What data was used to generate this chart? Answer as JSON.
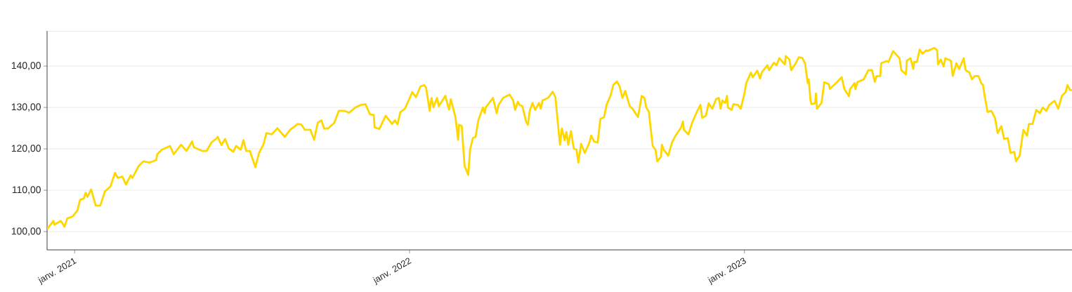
{
  "chart_data": {
    "type": "line",
    "color": "#ffd700",
    "grid": "y",
    "xlim": [
      "2020-12-02",
      "2023-12-24"
    ],
    "xticks": [
      {
        "value": "2021-01-01",
        "label": "janv. 2021"
      },
      {
        "value": "2022-01-01",
        "label": "janv. 2022"
      },
      {
        "value": "2023-01-01",
        "label": "janv. 2023"
      }
    ],
    "ylim": [
      95.6,
      148.5
    ],
    "yticks": [
      {
        "value": 100,
        "label": "100,00"
      },
      {
        "value": 110,
        "label": "110,00"
      },
      {
        "value": 120,
        "label": "120,00"
      },
      {
        "value": 130,
        "label": "130,00"
      },
      {
        "value": 140,
        "label": "140,00"
      }
    ],
    "x": [
      "2020-12-02",
      "2020-12-09",
      "2020-12-10",
      "2020-12-17",
      "2020-12-21",
      "2020-12-24",
      "2020-12-30",
      "2021-01-04",
      "2021-01-07",
      "2021-01-11",
      "2021-01-13",
      "2021-01-15",
      "2021-01-19",
      "2021-01-24",
      "2021-01-29",
      "2021-02-03",
      "2021-02-09",
      "2021-02-14",
      "2021-02-17",
      "2021-02-22",
      "2021-02-26",
      "2021-03-03",
      "2021-03-05",
      "2021-03-12",
      "2021-03-17",
      "2021-03-24",
      "2021-03-31",
      "2021-04-01",
      "2021-04-06",
      "2021-04-15",
      "2021-04-19",
      "2021-04-27",
      "2021-05-03",
      "2021-05-09",
      "2021-05-11",
      "2021-05-20",
      "2021-05-25",
      "2021-05-30",
      "2021-06-05",
      "2021-06-06",
      "2021-06-10",
      "2021-06-14",
      "2021-06-18",
      "2021-06-23",
      "2021-06-26",
      "2021-07-01",
      "2021-07-04",
      "2021-07-07",
      "2021-07-11",
      "2021-07-17",
      "2021-07-21",
      "2021-07-26",
      "2021-07-29",
      "2021-08-04",
      "2021-08-10",
      "2021-08-18",
      "2021-08-24",
      "2021-09-01",
      "2021-09-05",
      "2021-09-09",
      "2021-09-15",
      "2021-09-19",
      "2021-09-23",
      "2021-09-27",
      "2021-09-30",
      "2021-10-04",
      "2021-10-11",
      "2021-10-16",
      "2021-10-22",
      "2021-10-27",
      "2021-11-03",
      "2021-11-09",
      "2021-11-14",
      "2021-11-19",
      "2021-11-23",
      "2021-11-24",
      "2021-11-29",
      "2021-12-06",
      "2021-12-13",
      "2021-12-16",
      "2021-12-19",
      "2021-12-22",
      "2021-12-27",
      "2022-01-04",
      "2022-01-08",
      "2022-01-13",
      "2022-01-17",
      "2022-01-19",
      "2022-01-23",
      "2022-01-25",
      "2022-01-27",
      "2022-01-31",
      "2022-02-02",
      "2022-02-09",
      "2022-02-13",
      "2022-02-15",
      "2022-02-20",
      "2022-02-23",
      "2022-02-24",
      "2022-02-27",
      "2022-02-28",
      "2022-03-02",
      "2022-03-06",
      "2022-03-08",
      "2022-03-11",
      "2022-03-14",
      "2022-03-17",
      "2022-03-22",
      "2022-03-24",
      "2022-03-25",
      "2022-04-02",
      "2022-04-06",
      "2022-04-08",
      "2022-04-13",
      "2022-04-20",
      "2022-04-24",
      "2022-04-26",
      "2022-04-29",
      "2022-05-01",
      "2022-05-04",
      "2022-05-08",
      "2022-05-10",
      "2022-05-12",
      "2022-05-15",
      "2022-05-18",
      "2022-05-22",
      "2022-05-24",
      "2022-05-26",
      "2022-06-01",
      "2022-06-06",
      "2022-06-09",
      "2022-06-12",
      "2022-06-14",
      "2022-06-16",
      "2022-06-19",
      "2022-06-21",
      "2022-06-23",
      "2022-06-26",
      "2022-06-29",
      "2022-07-02",
      "2022-07-04",
      "2022-07-07",
      "2022-07-11",
      "2022-07-16",
      "2022-07-18",
      "2022-07-21",
      "2022-07-25",
      "2022-07-28",
      "2022-08-01",
      "2022-08-04",
      "2022-08-08",
      "2022-08-11",
      "2022-08-15",
      "2022-08-18",
      "2022-08-21",
      "2022-08-24",
      "2022-08-29",
      "2022-09-01",
      "2022-09-07",
      "2022-09-11",
      "2022-09-14",
      "2022-09-16",
      "2022-09-19",
      "2022-09-20",
      "2022-09-23",
      "2022-09-26",
      "2022-09-28",
      "2022-10-02",
      "2022-10-03",
      "2022-10-05",
      "2022-10-10",
      "2022-10-14",
      "2022-10-18",
      "2022-10-24",
      "2022-10-26",
      "2022-10-27",
      "2022-11-01",
      "2022-11-05",
      "2022-11-10",
      "2022-11-14",
      "2022-11-16",
      "2022-11-20",
      "2022-11-23",
      "2022-11-27",
      "2022-12-01",
      "2022-12-04",
      "2022-12-06",
      "2022-12-08",
      "2022-12-11",
      "2022-12-13",
      "2022-12-14",
      "2022-12-18",
      "2022-12-20",
      "2022-12-25",
      "2022-12-28",
      "2023-01-01",
      "2023-01-03",
      "2023-01-08",
      "2023-01-10",
      "2023-01-15",
      "2023-01-18",
      "2023-01-20",
      "2023-01-26",
      "2023-01-28",
      "2023-02-02",
      "2023-02-05",
      "2023-02-08",
      "2023-02-14",
      "2023-02-15",
      "2023-02-19",
      "2023-02-21",
      "2023-02-26",
      "2023-03-01",
      "2023-03-05",
      "2023-03-08",
      "2023-03-11",
      "2023-03-12",
      "2023-03-14",
      "2023-03-15",
      "2023-03-19",
      "2023-03-20",
      "2023-03-21",
      "2023-03-26",
      "2023-03-29",
      "2023-04-03",
      "2023-04-04",
      "2023-04-11",
      "2023-04-17",
      "2023-04-20",
      "2023-04-25",
      "2023-04-26",
      "2023-05-01",
      "2023-05-02",
      "2023-05-04",
      "2023-05-11",
      "2023-05-16",
      "2023-05-20",
      "2023-05-23",
      "2023-05-25",
      "2023-05-29",
      "2023-05-30",
      "2023-06-05",
      "2023-06-07",
      "2023-06-12",
      "2023-06-19",
      "2023-06-21",
      "2023-06-26",
      "2023-06-27",
      "2023-07-01",
      "2023-07-04",
      "2023-07-05",
      "2023-07-08",
      "2023-07-11",
      "2023-07-14",
      "2023-07-18",
      "2023-07-19",
      "2023-07-27",
      "2023-07-30",
      "2023-07-31",
      "2023-08-03",
      "2023-08-06",
      "2023-08-08",
      "2023-08-14",
      "2023-08-16",
      "2023-08-20",
      "2023-08-23",
      "2023-08-28",
      "2023-08-30",
      "2023-09-03",
      "2023-09-06",
      "2023-09-09",
      "2023-09-13",
      "2023-09-16",
      "2023-09-18",
      "2023-09-20",
      "2023-09-23",
      "2023-09-27",
      "2023-10-01",
      "2023-10-04",
      "2023-10-08",
      "2023-10-11",
      "2023-10-15",
      "2023-10-18",
      "2023-10-22",
      "2023-10-24",
      "2023-10-28",
      "2023-11-01",
      "2023-11-05",
      "2023-11-07",
      "2023-11-11",
      "2023-11-15",
      "2023-11-19",
      "2023-11-22",
      "2023-11-26",
      "2023-11-29",
      "2023-12-05",
      "2023-12-09",
      "2023-12-13",
      "2023-12-17",
      "2023-12-19",
      "2023-12-22",
      "2023-12-24"
    ],
    "values": [
      100.6,
      102.6,
      101.7,
      102.6,
      101.2,
      103.2,
      103.7,
      105.1,
      107.7,
      108,
      109.4,
      108.4,
      110.2,
      106.3,
      106.3,
      109.7,
      110.9,
      114.2,
      113,
      113.3,
      111.4,
      113.6,
      113,
      115.9,
      117,
      116.7,
      117.3,
      118.7,
      119.8,
      120.7,
      118.7,
      121,
      119.5,
      121.8,
      120.4,
      119.5,
      119.5,
      121.5,
      122.6,
      122.9,
      120.9,
      122.4,
      120.1,
      119.3,
      120.7,
      119.8,
      122.1,
      119.5,
      119.5,
      115.6,
      119,
      121.2,
      123.8,
      123.5,
      125,
      122.9,
      124.6,
      126,
      125.9,
      124.6,
      124.6,
      122.2,
      126.3,
      126.9,
      124.9,
      124.9,
      126.3,
      129.2,
      129.2,
      128.7,
      130,
      130.6,
      130.8,
      128.3,
      128.2,
      125.2,
      124.8,
      128,
      126,
      126.9,
      125.9,
      128.9,
      129.7,
      133.7,
      132.5,
      135.1,
      135.4,
      134.8,
      129.2,
      132.3,
      130,
      132.3,
      130.3,
      132.8,
      129.5,
      132,
      127.7,
      122.2,
      125.8,
      125.5,
      122.1,
      115.9,
      113.7,
      119.8,
      122.6,
      122.9,
      126.9,
      130,
      128.6,
      130,
      132.3,
      128.6,
      130.6,
      132.3,
      133.1,
      131.7,
      129.4,
      131.4,
      130.6,
      130.3,
      126.6,
      125.8,
      129.2,
      131.1,
      129.4,
      131.1,
      129.7,
      131.7,
      132.3,
      133.8,
      132.5,
      125.5,
      121,
      124.9,
      122.1,
      124.1,
      121,
      124.3,
      120.1,
      119.8,
      116.7,
      121.2,
      119,
      121.5,
      123.2,
      121.8,
      121.5,
      127.2,
      127.7,
      130.8,
      132.8,
      135.4,
      136.3,
      135.1,
      132.3,
      134,
      130.3,
      129.7,
      127.7,
      132.8,
      132.3,
      130,
      128.9,
      126.6,
      120.7,
      119.8,
      117,
      118.1,
      121,
      119.8,
      118.4,
      121.5,
      123.2,
      125.2,
      126.6,
      124.6,
      123.5,
      126.3,
      128.9,
      130.6,
      127.5,
      128,
      131,
      129.7,
      132,
      132.3,
      129.7,
      131.7,
      131.1,
      132.8,
      130,
      129.4,
      130.8,
      130.6,
      129.7,
      133.4,
      135.9,
      138.4,
      137.3,
      138.9,
      137,
      138.5,
      140.2,
      139,
      140.8,
      140.2,
      141.9,
      140.4,
      142.4,
      141.6,
      139,
      140.7,
      142.1,
      142,
      140.7,
      135.9,
      136.8,
      131.7,
      130.8,
      131,
      133.4,
      129.7,
      131.1,
      136.1,
      135.6,
      134.5,
      135.9,
      137.3,
      134.4,
      132.7,
      134.4,
      135.9,
      134.4,
      136.1,
      136.8,
      139,
      139,
      136.2,
      137.6,
      137.6,
      140.7,
      141.2,
      141,
      143.6,
      141.9,
      139,
      138,
      141.3,
      141.9,
      139.3,
      141,
      141,
      144,
      143,
      143.8,
      143.6,
      144.4,
      143.8,
      140.4,
      141.6,
      139.9,
      141.9,
      141.3,
      137.6,
      140.7,
      139.3,
      141.9,
      139,
      138.5,
      136.8,
      137.6,
      137.6,
      135.9,
      135.4,
      132.5,
      128.9,
      129.2,
      127.5,
      123.8,
      125.5,
      122.4,
      122.6,
      119,
      119.3,
      117,
      118.4,
      124.6,
      123.2,
      126,
      126,
      129.4,
      128.6,
      130,
      129.2,
      130.6,
      131.6,
      129.7,
      132.8,
      133.7,
      135.4,
      134.2,
      134.2
    ]
  }
}
